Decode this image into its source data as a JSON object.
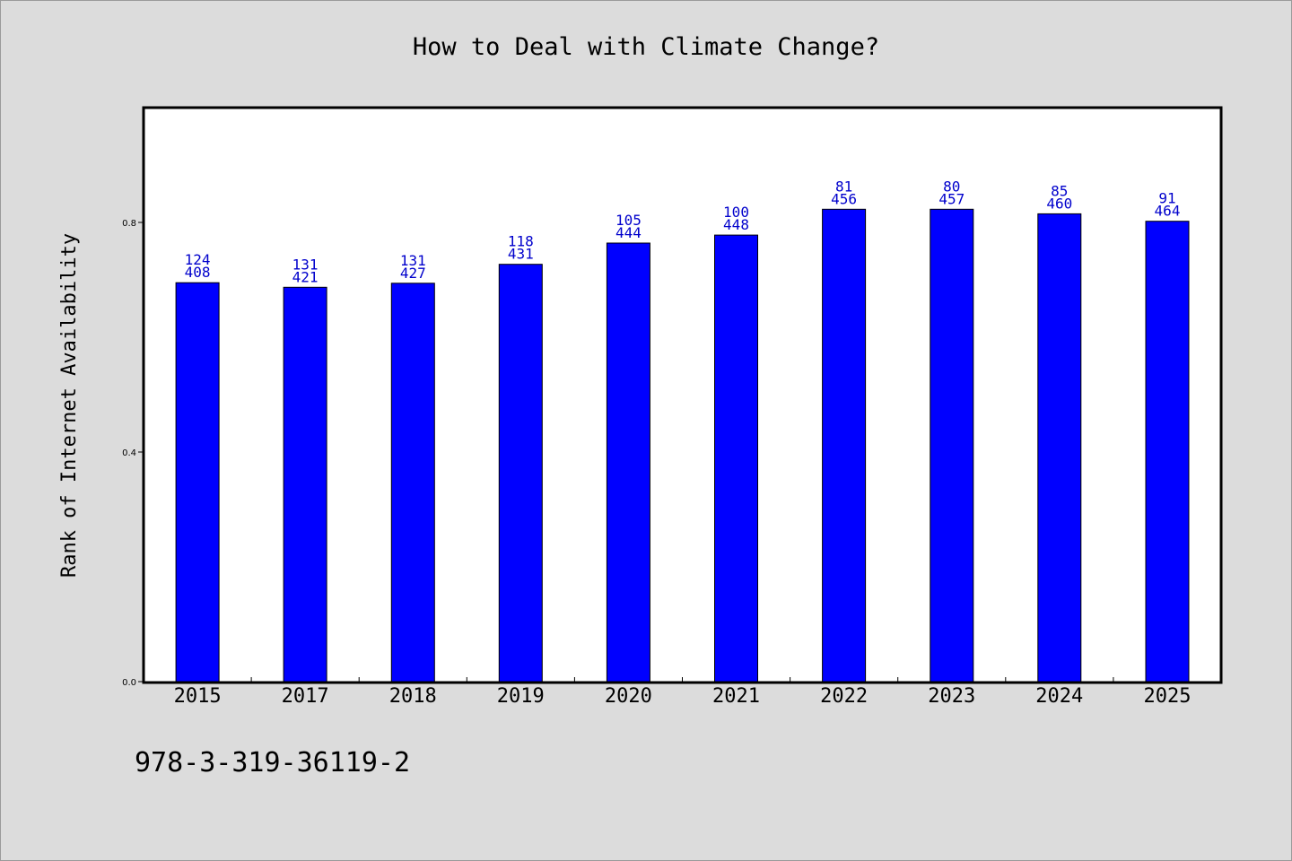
{
  "footer": {
    "code": "978-3-319-36119-2"
  },
  "chart_data": {
    "type": "bar",
    "title": "How to Deal with Climate Change?",
    "xlabel": "",
    "ylabel": "Rank of Internet Availability",
    "ylim": [
      0,
      1.0
    ],
    "yticks": [
      "0.0",
      "0.4",
      "0.8"
    ],
    "grid": false,
    "bar_color": "#0000ff",
    "label_color": "#0000cc",
    "categories": [
      "2015",
      "2017",
      "2018",
      "2019",
      "2020",
      "2021",
      "2022",
      "2023",
      "2024",
      "2025"
    ],
    "values": [
      0.695,
      0.687,
      0.694,
      0.727,
      0.764,
      0.778,
      0.823,
      0.823,
      0.815,
      0.802
    ],
    "labels_top": [
      "124",
      "131",
      "131",
      "118",
      "105",
      "100",
      "81",
      "80",
      "85",
      "91"
    ],
    "labels_bottom": [
      "408",
      "421",
      "427",
      "431",
      "444",
      "448",
      "456",
      "457",
      "460",
      "464"
    ]
  }
}
